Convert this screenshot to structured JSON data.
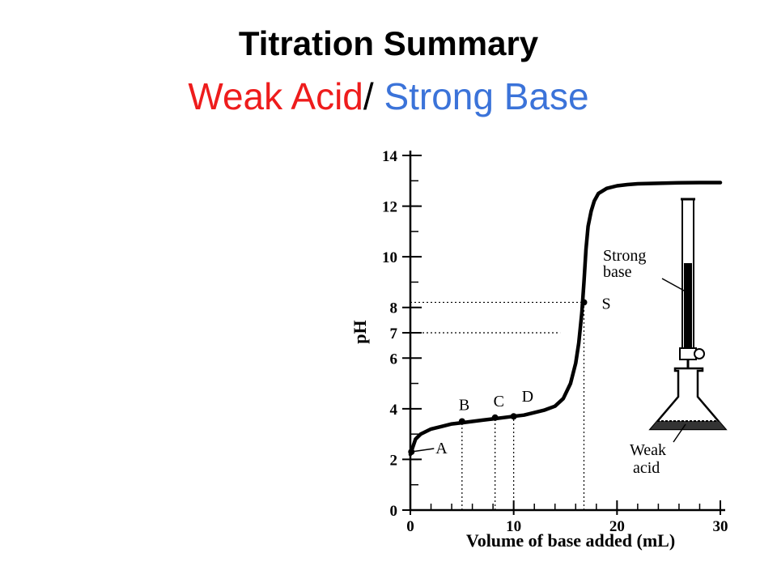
{
  "slide": {
    "title": "Titration Summary",
    "subtitle_part1": "Weak Acid",
    "subtitle_sep": "/ ",
    "subtitle_part2": "Strong Base",
    "colors": {
      "part1": "#ee1c1c",
      "part2": "#3b73d9",
      "sep": "#000000"
    }
  },
  "chart_data": {
    "type": "line",
    "xlabel": "Volume of base added (mL)",
    "ylabel": "pH",
    "xlim": [
      0,
      30
    ],
    "ylim": [
      0,
      14
    ],
    "xticks": [
      0,
      10,
      20,
      30
    ],
    "yticks": [
      0,
      2,
      4,
      6,
      7,
      8,
      10,
      12,
      14
    ],
    "series": [
      {
        "x": [
          0,
          0.5,
          1,
          2,
          3,
          4,
          5,
          6,
          7,
          8,
          9,
          10,
          11,
          12,
          13,
          14,
          14.8,
          15.5,
          16,
          16.3,
          16.6,
          16.8,
          17,
          17.2,
          17.5,
          17.8,
          18.2,
          19,
          20,
          21,
          22,
          24,
          26,
          28,
          30
        ],
        "y": [
          2.2,
          2.8,
          3.0,
          3.2,
          3.3,
          3.4,
          3.45,
          3.5,
          3.55,
          3.6,
          3.65,
          3.7,
          3.75,
          3.85,
          3.95,
          4.1,
          4.4,
          5.0,
          5.8,
          6.6,
          7.8,
          9.0,
          10.3,
          11.2,
          11.8,
          12.2,
          12.5,
          12.7,
          12.8,
          12.85,
          12.88,
          12.9,
          12.92,
          12.93,
          12.93
        ]
      }
    ],
    "points": [
      {
        "label": "A",
        "x": 0.1,
        "y": 2.3
      },
      {
        "label": "B",
        "x": 5,
        "y": 3.5
      },
      {
        "label": "C",
        "x": 8.2,
        "y": 3.65
      },
      {
        "label": "D",
        "x": 10,
        "y": 3.7
      },
      {
        "label": "S",
        "x": 16.8,
        "y": 8.2
      }
    ],
    "guides": [
      {
        "type": "hline",
        "y": 8.2,
        "x1": 0,
        "x2": 16.8
      },
      {
        "type": "hline",
        "y": 7,
        "x1": 0,
        "x2": 14.5
      },
      {
        "type": "vline",
        "x": 5,
        "y1": 0,
        "y2": 3.5
      },
      {
        "type": "vline",
        "x": 8.2,
        "y1": 0,
        "y2": 3.65
      },
      {
        "type": "vline",
        "x": 10,
        "y1": 0,
        "y2": 3.7
      },
      {
        "type": "vline",
        "x": 16.8,
        "y1": 0,
        "y2": 8.2
      }
    ],
    "annotations": {
      "burette_label_1": "Strong",
      "burette_label_2": "base",
      "flask_label_1": "Weak",
      "flask_label_2": "acid"
    },
    "grid": false
  }
}
